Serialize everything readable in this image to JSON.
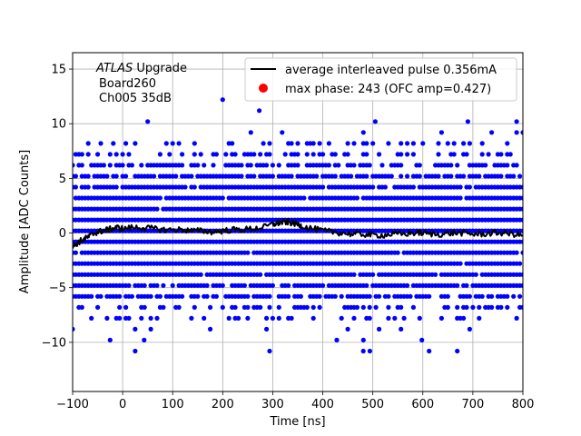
{
  "chart_data": {
    "type": "scatter",
    "title": "",
    "xlabel": "Time [ns]",
    "ylabel": "Amplitude [ADC Counts]",
    "xlim": [
      -100,
      800
    ],
    "ylim": [
      -14.5,
      16.5
    ],
    "x_ticks": [
      -100,
      0,
      100,
      200,
      300,
      400,
      500,
      600,
      700,
      800
    ],
    "y_ticks": [
      -10,
      -5,
      0,
      5,
      10,
      15
    ],
    "grid": true,
    "legend_position": "top-right",
    "annotation": {
      "line1_italic": "ATLAS",
      "line1_rest": " Upgrade",
      "line2": "Board260",
      "line3": "Ch005 35dB"
    },
    "series": [
      {
        "name": "average interleaved pulse 0.356mA",
        "kind": "line",
        "color": "#000000",
        "x": [
          -100,
          -90,
          -80,
          -70,
          -60,
          -50,
          -40,
          -30,
          -20,
          -10,
          0,
          20,
          40,
          60,
          80,
          100,
          120,
          140,
          160,
          180,
          200,
          220,
          240,
          260,
          280,
          300,
          310,
          320,
          330,
          340,
          350,
          360,
          380,
          400,
          420,
          440,
          460,
          480,
          500,
          520,
          540,
          560,
          580,
          600,
          620,
          640,
          660,
          680,
          700,
          720,
          740,
          760,
          780,
          800
        ],
        "y": [
          -1.3,
          -0.9,
          -0.6,
          -0.4,
          -0.1,
          0.1,
          0.2,
          0.3,
          0.4,
          0.5,
          0.4,
          0.5,
          0.5,
          0.4,
          0.3,
          0.3,
          0.3,
          0.2,
          0.2,
          0.1,
          0.2,
          0.3,
          0.3,
          0.4,
          0.5,
          0.8,
          0.9,
          1.0,
          1.0,
          0.9,
          0.8,
          0.6,
          0.4,
          0.2,
          0.1,
          0.0,
          -0.1,
          -0.1,
          -0.2,
          -0.2,
          -0.1,
          -0.1,
          0.0,
          0.0,
          -0.1,
          -0.1,
          0.0,
          0.0,
          -0.1,
          -0.1,
          0.0,
          0.0,
          -0.1,
          -0.2
        ]
      },
      {
        "name": "max phase: 243 (OFC amp=0.427)",
        "kind": "marker",
        "color": "#ff0000",
        "x": [],
        "y": []
      },
      {
        "name": "",
        "kind": "scatter",
        "color": "#0000ff",
        "levels": [
          -12.8,
          -11.8,
          -10.8,
          -9.8,
          -8.8,
          -7.8,
          -6.8,
          -5.8,
          -4.8,
          -3.8,
          -2.8,
          -1.8,
          -0.8,
          0.2,
          1.2,
          2.2,
          3.2,
          4.2,
          5.2,
          6.2,
          7.2,
          8.2,
          9.2,
          10.2,
          11.2,
          12.2
        ],
        "level_density": [
          0,
          0,
          0.01,
          0.03,
          0.05,
          0.25,
          0.45,
          0.7,
          0.88,
          0.95,
          0.98,
          0.99,
          1,
          1,
          1,
          0.99,
          0.98,
          0.95,
          0.88,
          0.65,
          0.42,
          0.28,
          0.05,
          0.02,
          0,
          0
        ],
        "x_range": [
          -100,
          800
        ],
        "x_step": 6.25,
        "outliers": [
          {
            "x": 200,
            "y": 12.2
          },
          {
            "x": 273,
            "y": 11.2
          },
          {
            "x": 505,
            "y": 10.2
          },
          {
            "x": 690,
            "y": 10.2
          },
          {
            "x": 25,
            "y": -10.8
          },
          {
            "x": 43,
            "y": -9.8
          },
          {
            "x": 428,
            "y": -9.8
          },
          {
            "x": 481,
            "y": -10.8
          },
          {
            "x": 494,
            "y": -10.8
          },
          {
            "x": 598,
            "y": -9.8
          }
        ]
      }
    ]
  }
}
